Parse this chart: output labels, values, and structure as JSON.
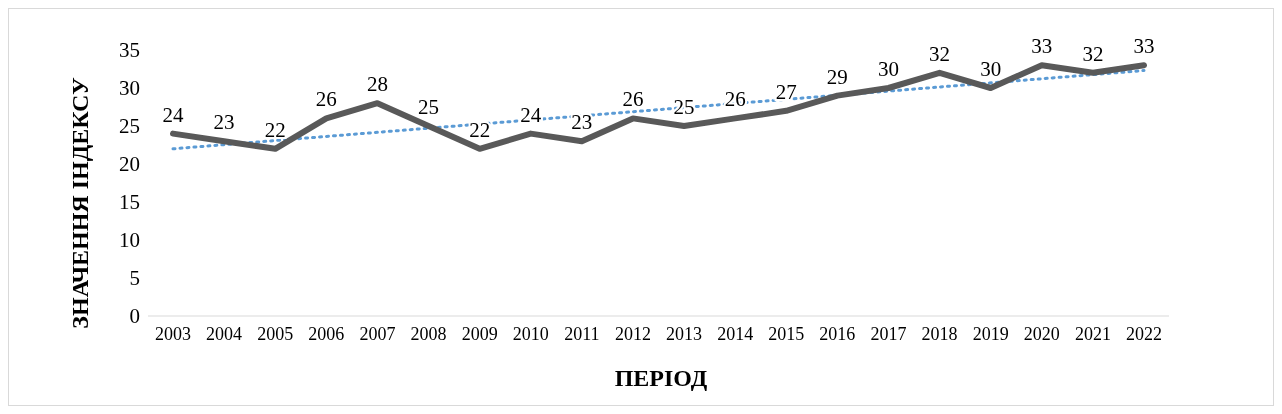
{
  "chart_data": {
    "type": "line",
    "xlabel": "ПЕРІОД",
    "ylabel": "ЗНАЧЕННЯ ІНДЕКСУ",
    "categories": [
      "2003",
      "2004",
      "2005",
      "2006",
      "2007",
      "2008",
      "2009",
      "2010",
      "2011",
      "2012",
      "2013",
      "2014",
      "2015",
      "2016",
      "2017",
      "2018",
      "2019",
      "2020",
      "2021",
      "2022"
    ],
    "series": [
      {
        "color": "#595959",
        "values": [
          24,
          23,
          22,
          26,
          28,
          25,
          22,
          24,
          23,
          26,
          25,
          26,
          27,
          29,
          30,
          32,
          30,
          33,
          32,
          33
        ],
        "data_labels": true
      },
      {
        "type": "line",
        "values": [
          22,
          null,
          null,
          null,
          null,
          null,
          null,
          null,
          null,
          null,
          null,
          null,
          null,
          null,
          null,
          null,
          null,
          null,
          null,
          32.3
        ],
        "color": "#5b9bd5",
        "line_style": "dotted"
      }
    ],
    "ylim": [
      0,
      35
    ],
    "yticks": [
      0,
      5,
      10,
      15,
      20,
      25,
      30,
      35
    ],
    "grid": false
  }
}
